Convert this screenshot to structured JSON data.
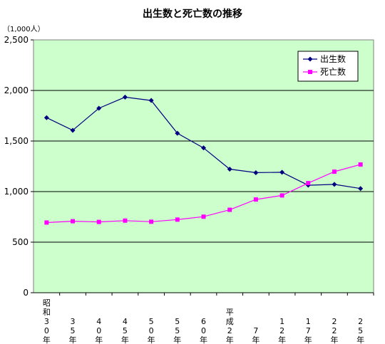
{
  "chart_data": {
    "type": "line",
    "title": "出生数と死亡数の推移",
    "unit_label": "（1,000人）",
    "xlabel": "",
    "ylabel": "",
    "ylim": [
      0,
      2500
    ],
    "yticks": [
      {
        "value": 0,
        "label": "0"
      },
      {
        "value": 500,
        "label": "500"
      },
      {
        "value": 1000,
        "label": "1,000"
      },
      {
        "value": 1500,
        "label": "1,500"
      },
      {
        "value": 2000,
        "label": "2,000"
      },
      {
        "value": 2500,
        "label": "2,500"
      }
    ],
    "categories": [
      {
        "era": "昭和",
        "num": "30",
        "suffix": "年"
      },
      {
        "era": "",
        "num": "35",
        "suffix": "年"
      },
      {
        "era": "",
        "num": "40",
        "suffix": "年"
      },
      {
        "era": "",
        "num": "45",
        "suffix": "年"
      },
      {
        "era": "",
        "num": "50",
        "suffix": "年"
      },
      {
        "era": "",
        "num": "55",
        "suffix": "年"
      },
      {
        "era": "",
        "num": "60",
        "suffix": "年"
      },
      {
        "era": "平成",
        "num": "2",
        "suffix": "年"
      },
      {
        "era": "",
        "num": "7",
        "suffix": "年"
      },
      {
        "era": "",
        "num": "12",
        "suffix": "年"
      },
      {
        "era": "",
        "num": "17",
        "suffix": "年"
      },
      {
        "era": "",
        "num": "22",
        "suffix": "年"
      },
      {
        "era": "",
        "num": "25",
        "suffix": "年"
      }
    ],
    "series": [
      {
        "name": "出生数",
        "color": "#000080",
        "marker": "diamond",
        "values": [
          1731,
          1606,
          1824,
          1934,
          1901,
          1577,
          1432,
          1222,
          1187,
          1191,
          1063,
          1071,
          1030
        ]
      },
      {
        "name": "死亡数",
        "color": "#ff00ff",
        "marker": "square",
        "values": [
          694,
          707,
          700,
          713,
          702,
          723,
          752,
          820,
          922,
          962,
          1084,
          1197,
          1268
        ]
      }
    ],
    "grid": true,
    "legend": "top-right",
    "plot_background": "#ccffcc"
  }
}
